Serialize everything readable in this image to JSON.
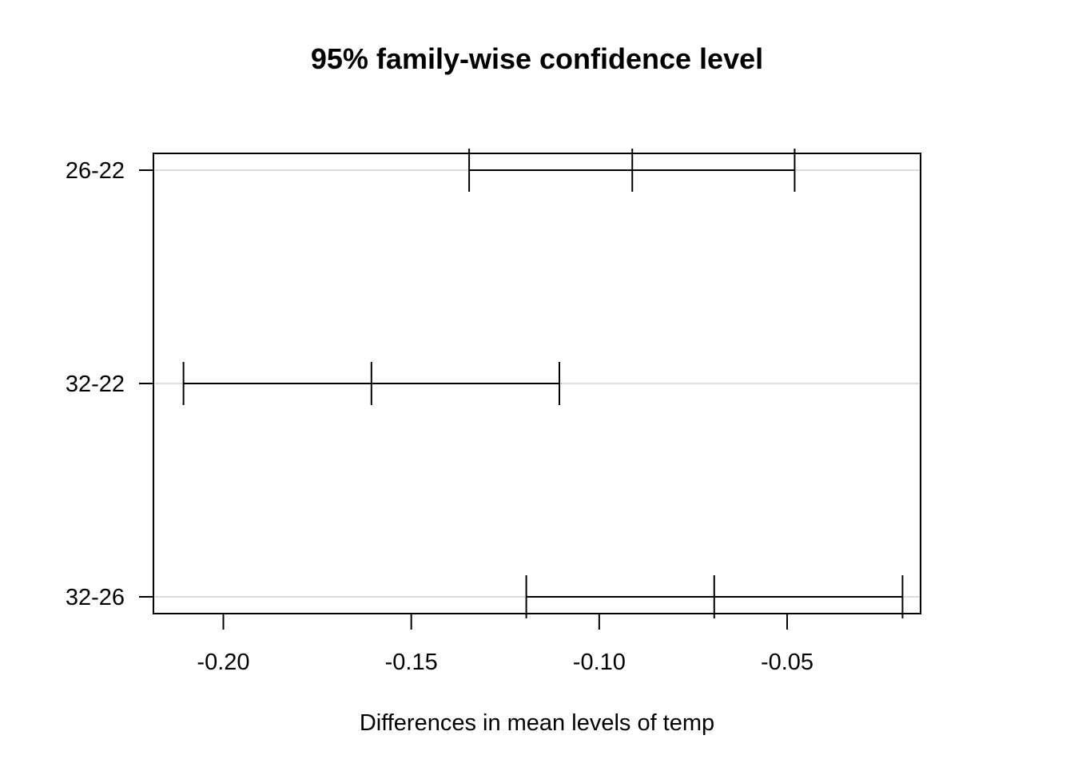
{
  "chart_data": {
    "type": "errorbar",
    "title": "95% family-wise confidence level",
    "xlabel": "Differences in mean levels of temp",
    "ylabel": "",
    "xlim": [
      -0.2186,
      -0.0145
    ],
    "x_ticks": [
      -0.2,
      -0.15,
      -0.1,
      -0.05
    ],
    "x_tick_labels": [
      "-0.20",
      "-0.15",
      "-0.10",
      "-0.05"
    ],
    "grid": "horizontal",
    "legend": "none",
    "categories": [
      "26-22",
      "32-22",
      "32-26"
    ],
    "series": [
      {
        "category": "26-22",
        "lower": -0.1346,
        "estimate": -0.0912,
        "upper": -0.048
      },
      {
        "category": "32-22",
        "lower": -0.2106,
        "estimate": -0.1606,
        "upper": -0.1106
      },
      {
        "category": "32-26",
        "lower": -0.1194,
        "estimate": -0.0694,
        "upper": -0.0193
      }
    ],
    "colors": {
      "line": "#000000",
      "grid": "#d3d3d3",
      "frame": "#000000"
    }
  }
}
